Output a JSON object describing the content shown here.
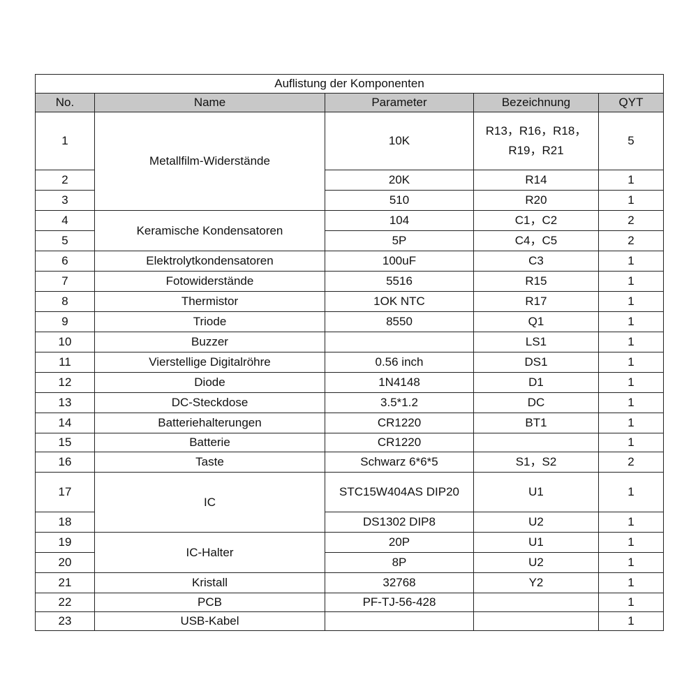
{
  "header": {
    "title": "Auflistung der Komponenten"
  },
  "table": {
    "columns": [
      "No.",
      "Name",
      "Parameter",
      "Bezeichnung",
      "QYT"
    ],
    "groups": [
      {
        "name": "Metallfilm-Widerstände",
        "items": [
          {
            "no": 1,
            "parameter": "10K",
            "designation": "R13，R16，R18，R19，R21",
            "qty": 5
          },
          {
            "no": 2,
            "parameter": "20K",
            "designation": "R14",
            "qty": 1
          },
          {
            "no": 3,
            "parameter": "510",
            "designation": "R20",
            "qty": 1
          }
        ]
      },
      {
        "name": "Keramische Kondensatoren",
        "items": [
          {
            "no": 4,
            "parameter": "104",
            "designation": "C1，C2",
            "qty": 2
          },
          {
            "no": 5,
            "parameter": "5P",
            "designation": "C4，C5",
            "qty": 2
          }
        ]
      },
      {
        "name": "Elektrolytkondensatoren",
        "items": [
          {
            "no": 6,
            "parameter": "100uF",
            "designation": "C3",
            "qty": 1
          }
        ]
      },
      {
        "name": "Fotowiderstände",
        "items": [
          {
            "no": 7,
            "parameter": "5516",
            "designation": "R15",
            "qty": 1
          }
        ]
      },
      {
        "name": "Thermistor",
        "items": [
          {
            "no": 8,
            "parameter": "1OK NTC",
            "designation": "R17",
            "qty": 1
          }
        ]
      },
      {
        "name": "Triode",
        "items": [
          {
            "no": 9,
            "parameter": "8550",
            "designation": "Q1",
            "qty": 1
          }
        ]
      },
      {
        "name": "Buzzer",
        "items": [
          {
            "no": 10,
            "parameter": null,
            "designation": "LS1",
            "qty": 1
          }
        ]
      },
      {
        "name": "Vierstellige Digitalröhre",
        "items": [
          {
            "no": 11,
            "parameter": "0.56 inch",
            "designation": "DS1",
            "qty": 1
          }
        ]
      },
      {
        "name": "Diode",
        "items": [
          {
            "no": 12,
            "parameter": "1N4148",
            "designation": "D1",
            "qty": 1
          }
        ]
      },
      {
        "name": "DC-Steckdose",
        "items": [
          {
            "no": 13,
            "parameter": "3.5*1.2",
            "designation": "DC",
            "qty": 1
          }
        ]
      },
      {
        "name": "Batteriehalterungen",
        "items": [
          {
            "no": 14,
            "parameter": "CR1220",
            "designation": "BT1",
            "qty": 1
          }
        ]
      },
      {
        "name": "Batterie",
        "items": [
          {
            "no": 15,
            "parameter": "CR1220",
            "designation": null,
            "qty": 1
          }
        ]
      },
      {
        "name": "Taste",
        "items": [
          {
            "no": 16,
            "parameter": "Schwarz 6*6*5",
            "designation": "S1，S2",
            "qty": 2
          }
        ]
      },
      {
        "name": "IC",
        "items": [
          {
            "no": 17,
            "parameter": "STC15W404AS DIP20",
            "designation": "U1",
            "qty": 1
          },
          {
            "no": 18,
            "parameter": "DS1302 DIP8",
            "designation": "U2",
            "qty": 1
          }
        ]
      },
      {
        "name": "IC-Halter",
        "items": [
          {
            "no": 19,
            "parameter": "20P",
            "designation": "U1",
            "qty": 1
          },
          {
            "no": 20,
            "parameter": "8P",
            "designation": "U2",
            "qty": 1
          }
        ]
      },
      {
        "name": "Kristall",
        "items": [
          {
            "no": 21,
            "parameter": "32768",
            "designation": "Y2",
            "qty": 1
          }
        ]
      },
      {
        "name": "PCB",
        "items": [
          {
            "no": 22,
            "parameter": "PF-TJ-56-428",
            "designation": null,
            "qty": 1
          }
        ]
      },
      {
        "name": "USB-Kabel",
        "items": [
          {
            "no": 23,
            "parameter": null,
            "designation": null,
            "qty": 1
          }
        ]
      }
    ]
  }
}
